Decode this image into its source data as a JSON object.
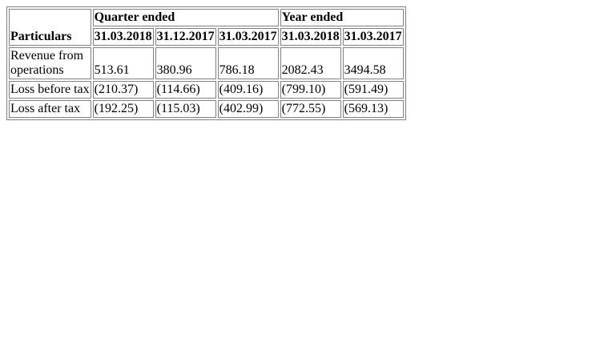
{
  "table": {
    "header": {
      "particulars_label": "Particulars",
      "quarter_group_label": "Quarter ended",
      "year_group_label": "Year ended",
      "columns": [
        "31.03.2018",
        "31.12.2017",
        "31.03.2017",
        "31.03.2018",
        "31.03.2017"
      ]
    },
    "rows": [
      {
        "label": "Revenue from operations",
        "values": [
          "513.61",
          "380.96",
          "786.18",
          "2082.43",
          "3494.58"
        ]
      },
      {
        "label": "Loss before tax",
        "values": [
          "(210.37)",
          "(114.66)",
          "(409.16)",
          "(799.10)",
          "(591.49)"
        ]
      },
      {
        "label": "Loss after tax",
        "values": [
          "(192.25)",
          "(115.03)",
          "(402.99)",
          "(772.55)",
          "(569.13)"
        ]
      }
    ]
  }
}
